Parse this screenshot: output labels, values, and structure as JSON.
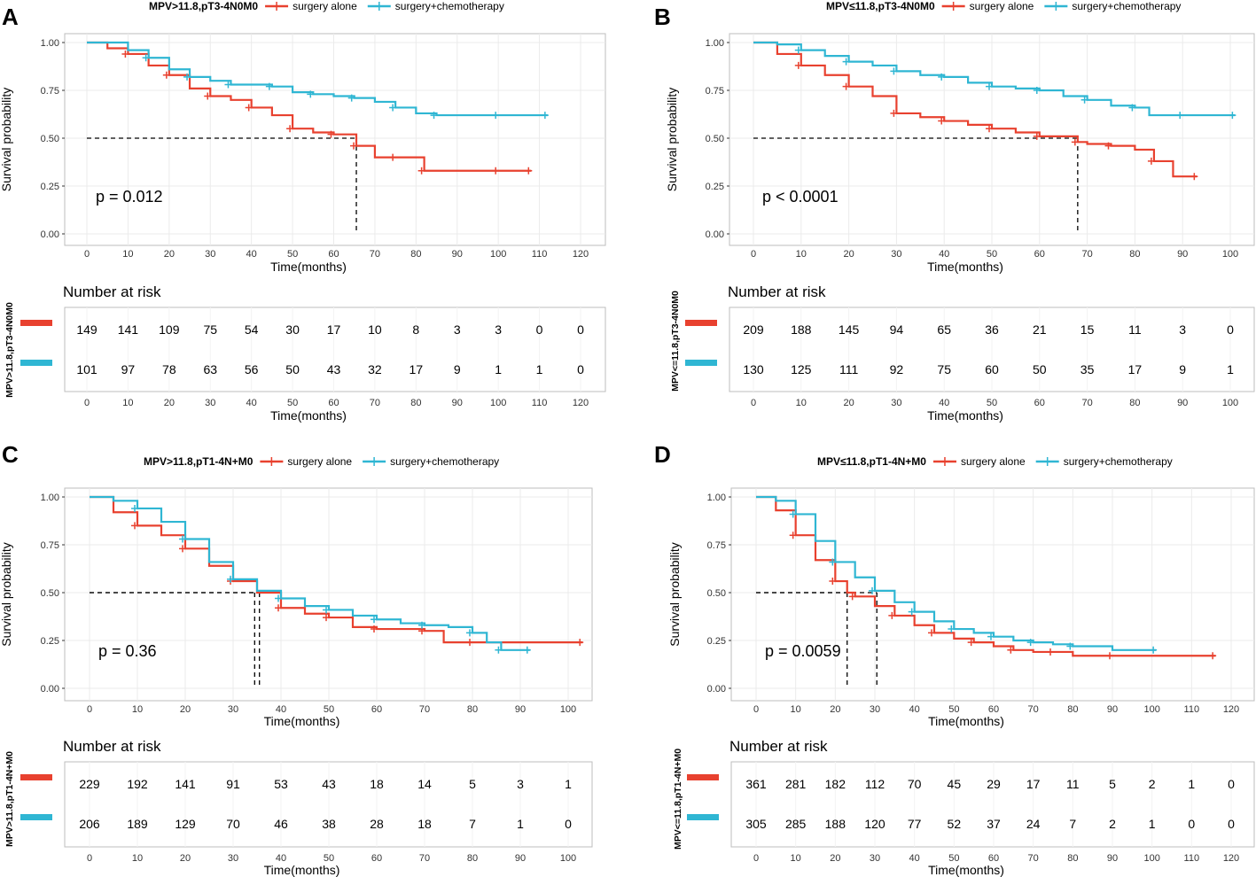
{
  "colors": {
    "surgery_alone": "#e8412f",
    "surgery_chemo": "#2fb6d3",
    "panel_border": "#bdbdbd",
    "grid": "#ebebeb"
  },
  "panels": [
    {
      "letter": "A",
      "title": "MPV>11.8,pT3-4N0M0",
      "legend": [
        "surgery alone",
        "surgery+chemotherapy"
      ]
    },
    {
      "letter": "B",
      "title": "MPV≤11.8,pT3-4N0M0",
      "legend": [
        "surgery alone",
        "surgery+chemotherapy"
      ]
    },
    {
      "letter": "C",
      "title": "MPV>11.8,pT1-4N+M0",
      "legend": [
        "surgery alone",
        "surgery+chemotherapy"
      ]
    },
    {
      "letter": "D",
      "title": "MPV≤11.8,pT1-4N+M0",
      "legend": [
        "surgery alone",
        "surgery+chemotherapy"
      ]
    }
  ],
  "chart_data": [
    {
      "type": "line",
      "subtype": "kaplan-meier",
      "panel": "A",
      "title": "MPV>11.8,pT3-4N0M0",
      "xlabel": "Time(months)",
      "ylabel": "Survival probability",
      "xlim": [
        0,
        120
      ],
      "ylim": [
        0,
        1
      ],
      "x_ticks": [
        0,
        10,
        20,
        30,
        40,
        50,
        60,
        70,
        80,
        90,
        100,
        110,
        120
      ],
      "y_ticks": [
        "0.00",
        "0.25",
        "0.50",
        "0.75",
        "1.00"
      ],
      "p_value": "p = 0.012",
      "median_lines": [
        65.5
      ],
      "series": [
        {
          "name": "surgery alone",
          "x": [
            0,
            5,
            10,
            15,
            20,
            25,
            30,
            35,
            40,
            45,
            50,
            55,
            60,
            65,
            65.5,
            70,
            75,
            80,
            82,
            90,
            100,
            108
          ],
          "y": [
            1.0,
            0.97,
            0.94,
            0.88,
            0.83,
            0.76,
            0.72,
            0.7,
            0.66,
            0.62,
            0.55,
            0.53,
            0.52,
            0.52,
            0.46,
            0.4,
            0.4,
            0.4,
            0.33,
            0.33,
            0.33,
            0.33
          ]
        },
        {
          "name": "surgery+chemotherapy",
          "x": [
            0,
            10,
            15,
            20,
            25,
            30,
            35,
            40,
            45,
            50,
            55,
            60,
            65,
            70,
            75,
            80,
            85,
            90,
            100,
            112
          ],
          "y": [
            1.0,
            0.96,
            0.92,
            0.86,
            0.82,
            0.8,
            0.78,
            0.78,
            0.77,
            0.74,
            0.73,
            0.72,
            0.71,
            0.69,
            0.66,
            0.63,
            0.62,
            0.62,
            0.62,
            0.62
          ]
        }
      ],
      "risk_table": {
        "title": "Number at risk",
        "strata_label": "MPV>11.8,pT3-4N0M0",
        "xlabel": "Time(months)",
        "times": [
          0,
          10,
          20,
          30,
          40,
          50,
          60,
          70,
          80,
          90,
          100,
          110,
          120
        ],
        "rows": [
          [
            "149",
            "141",
            "109",
            "75",
            "54",
            "30",
            "17",
            "10",
            "8",
            "3",
            "3",
            "0",
            "0"
          ],
          [
            "101",
            "97",
            "78",
            "63",
            "56",
            "50",
            "43",
            "32",
            "17",
            "9",
            "1",
            "1",
            "0"
          ]
        ]
      }
    },
    {
      "type": "line",
      "subtype": "kaplan-meier",
      "panel": "B",
      "title": "MPV≤11.8,pT3-4N0M0",
      "xlabel": "Time(months)",
      "ylabel": "Survival probability",
      "xlim": [
        0,
        100
      ],
      "ylim": [
        0,
        1
      ],
      "x_ticks": [
        0,
        10,
        20,
        30,
        40,
        50,
        60,
        70,
        80,
        90,
        100
      ],
      "y_ticks": [
        "0.00",
        "0.25",
        "0.50",
        "0.75",
        "1.00"
      ],
      "p_value": "p < 0.0001",
      "median_lines": [
        68
      ],
      "series": [
        {
          "name": "surgery alone",
          "x": [
            0,
            5,
            10,
            15,
            20,
            25,
            30,
            35,
            40,
            45,
            50,
            55,
            60,
            65,
            68,
            70,
            75,
            80,
            84,
            88,
            93
          ],
          "y": [
            1.0,
            0.94,
            0.88,
            0.83,
            0.77,
            0.72,
            0.63,
            0.61,
            0.59,
            0.57,
            0.55,
            0.53,
            0.51,
            0.51,
            0.48,
            0.47,
            0.46,
            0.44,
            0.38,
            0.3,
            0.3
          ]
        },
        {
          "name": "surgery+chemotherapy",
          "x": [
            0,
            5,
            10,
            15,
            20,
            25,
            30,
            35,
            40,
            45,
            50,
            55,
            60,
            65,
            70,
            75,
            80,
            83,
            90,
            101
          ],
          "y": [
            1.0,
            0.99,
            0.96,
            0.93,
            0.9,
            0.88,
            0.85,
            0.83,
            0.82,
            0.79,
            0.77,
            0.76,
            0.75,
            0.72,
            0.7,
            0.67,
            0.66,
            0.62,
            0.62,
            0.62
          ]
        }
      ],
      "risk_table": {
        "title": "Number at risk",
        "strata_label": "MPV<=11.8,pT3-4N0M0",
        "xlabel": "Time(months)",
        "times": [
          0,
          10,
          20,
          30,
          40,
          50,
          60,
          70,
          80,
          90,
          100
        ],
        "rows": [
          [
            "209",
            "188",
            "145",
            "94",
            "65",
            "36",
            "21",
            "15",
            "11",
            "3",
            "0"
          ],
          [
            "130",
            "125",
            "111",
            "92",
            "75",
            "60",
            "50",
            "35",
            "17",
            "9",
            "1"
          ]
        ]
      }
    },
    {
      "type": "line",
      "subtype": "kaplan-meier",
      "panel": "C",
      "title": "MPV>11.8,pT1-4N+M0",
      "xlabel": "Time(months)",
      "ylabel": "Survival probability",
      "xlim": [
        0,
        100
      ],
      "ylim": [
        0,
        1
      ],
      "x_ticks": [
        0,
        10,
        20,
        30,
        40,
        50,
        60,
        70,
        80,
        90,
        100
      ],
      "y_ticks": [
        "0.00",
        "0.25",
        "0.50",
        "0.75",
        "1.00"
      ],
      "p_value": "p = 0.36",
      "median_lines": [
        34.5,
        35.5
      ],
      "series": [
        {
          "name": "surgery alone",
          "x": [
            0,
            5,
            10,
            15,
            20,
            25,
            30,
            35,
            40,
            45,
            50,
            55,
            60,
            65,
            70,
            74,
            80,
            90,
            103
          ],
          "y": [
            1.0,
            0.92,
            0.85,
            0.8,
            0.73,
            0.64,
            0.56,
            0.5,
            0.42,
            0.39,
            0.37,
            0.32,
            0.31,
            0.31,
            0.3,
            0.24,
            0.24,
            0.24,
            0.24
          ]
        },
        {
          "name": "surgery+chemotherapy",
          "x": [
            0,
            5,
            10,
            15,
            20,
            25,
            30,
            35,
            40,
            45,
            50,
            55,
            60,
            65,
            70,
            75,
            80,
            83,
            86,
            92
          ],
          "y": [
            1.0,
            0.98,
            0.94,
            0.87,
            0.78,
            0.66,
            0.57,
            0.51,
            0.47,
            0.43,
            0.41,
            0.38,
            0.36,
            0.34,
            0.33,
            0.32,
            0.29,
            0.24,
            0.2,
            0.2
          ]
        }
      ],
      "risk_table": {
        "title": "Number at risk",
        "strata_label": "MPV>11.8,pT1-4N+M0",
        "xlabel": "Time(months)",
        "times": [
          0,
          10,
          20,
          30,
          40,
          50,
          60,
          70,
          80,
          90,
          100
        ],
        "rows": [
          [
            "229",
            "192",
            "141",
            "91",
            "53",
            "43",
            "18",
            "14",
            "5",
            "3",
            "1"
          ],
          [
            "206",
            "189",
            "129",
            "70",
            "46",
            "38",
            "28",
            "18",
            "7",
            "1",
            "0"
          ]
        ]
      }
    },
    {
      "type": "line",
      "subtype": "kaplan-meier",
      "panel": "D",
      "title": "MPV≤11.8,pT1-4N+M0",
      "xlabel": "Time(months)",
      "ylabel": "Survival probability",
      "xlim": [
        0,
        120
      ],
      "ylim": [
        0,
        1
      ],
      "x_ticks": [
        0,
        10,
        20,
        30,
        40,
        50,
        60,
        70,
        80,
        90,
        100,
        110,
        120
      ],
      "y_ticks": [
        "0.00",
        "0.25",
        "0.50",
        "0.75",
        "1.00"
      ],
      "p_value": "p = 0.0059",
      "median_lines": [
        23,
        30.5
      ],
      "series": [
        {
          "name": "surgery alone",
          "x": [
            0,
            5,
            10,
            15,
            20,
            23,
            25,
            30,
            35,
            40,
            45,
            50,
            55,
            60,
            65,
            70,
            75,
            80,
            90,
            100,
            116
          ],
          "y": [
            1.0,
            0.93,
            0.8,
            0.67,
            0.56,
            0.5,
            0.48,
            0.43,
            0.38,
            0.33,
            0.29,
            0.26,
            0.24,
            0.22,
            0.2,
            0.19,
            0.19,
            0.17,
            0.17,
            0.17,
            0.17
          ]
        },
        {
          "name": "surgery+chemotherapy",
          "x": [
            0,
            5,
            10,
            15,
            20,
            25,
            30,
            35,
            40,
            45,
            50,
            55,
            60,
            65,
            70,
            75,
            80,
            90,
            101
          ],
          "y": [
            1.0,
            0.98,
            0.91,
            0.77,
            0.66,
            0.58,
            0.51,
            0.45,
            0.4,
            0.35,
            0.31,
            0.29,
            0.27,
            0.25,
            0.24,
            0.23,
            0.22,
            0.2,
            0.2
          ]
        }
      ],
      "risk_table": {
        "title": "Number at risk",
        "strata_label": "MPV<=11.8,pT1-4N+M0",
        "xlabel": "Time(months)",
        "times": [
          0,
          10,
          20,
          30,
          40,
          50,
          60,
          70,
          80,
          90,
          100,
          110,
          120
        ],
        "rows": [
          [
            "361",
            "281",
            "182",
            "112",
            "70",
            "45",
            "29",
            "17",
            "11",
            "5",
            "2",
            "1",
            "0"
          ],
          [
            "305",
            "285",
            "188",
            "120",
            "77",
            "52",
            "37",
            "24",
            "7",
            "2",
            "1",
            "0",
            "0"
          ]
        ]
      }
    }
  ]
}
